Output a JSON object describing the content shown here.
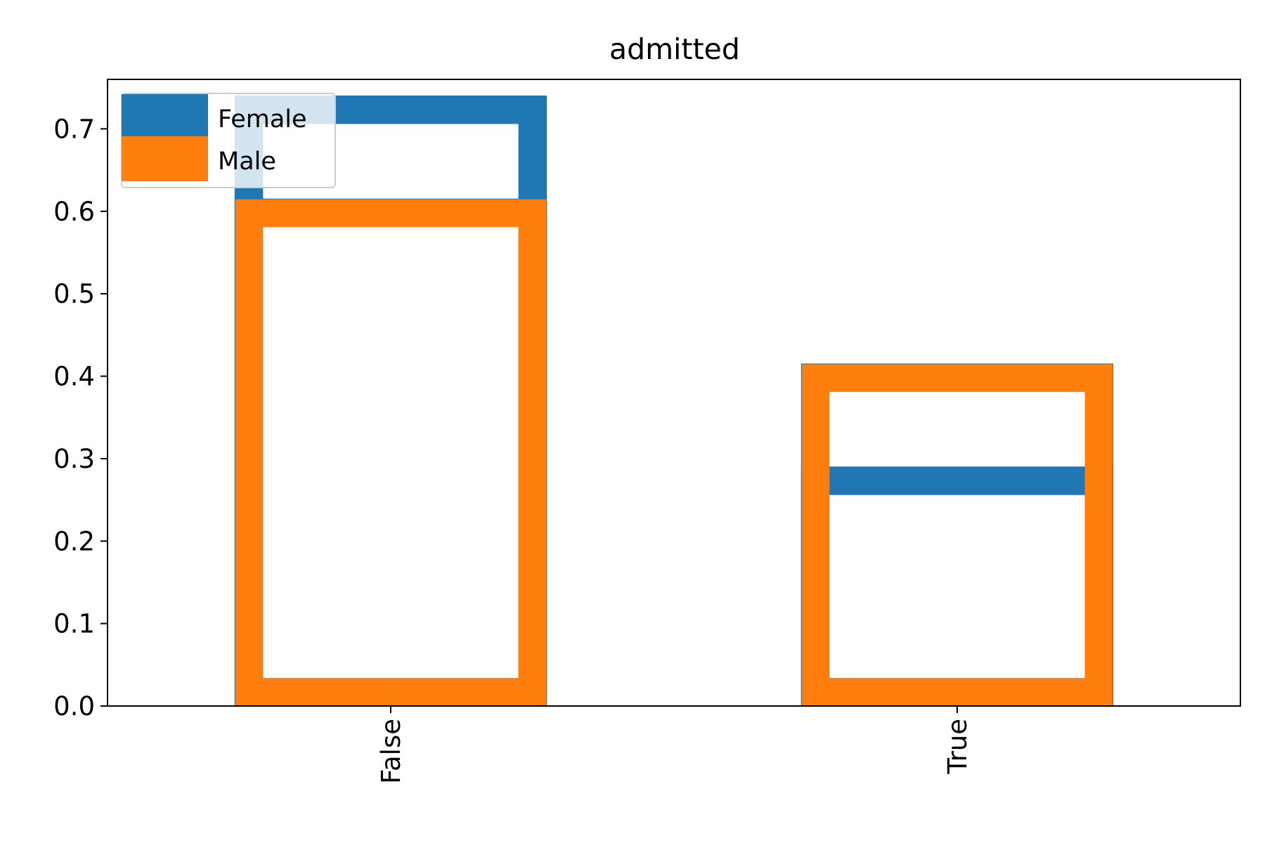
{
  "chart_data": {
    "type": "bar",
    "title": "admitted",
    "xlabel": "",
    "ylabel": "",
    "categories": [
      "False",
      "True"
    ],
    "series": [
      {
        "name": "Female",
        "values": [
          0.74,
          0.29
        ],
        "color": "#1f77b4"
      },
      {
        "name": "Male",
        "values": [
          0.615,
          0.415
        ],
        "color": "#ff7f0e"
      }
    ],
    "ylim": [
      0,
      0.76
    ],
    "yticks": [
      "0.0",
      "0.1",
      "0.2",
      "0.3",
      "0.4",
      "0.5",
      "0.6",
      "0.7"
    ],
    "bar_fill": "none",
    "grid": false,
    "legend_position": "upper-left",
    "x_tick_rotation": "vertical"
  }
}
